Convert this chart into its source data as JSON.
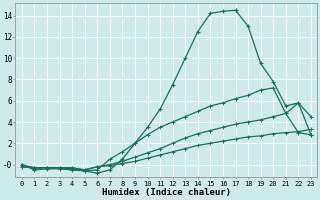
{
  "xlabel": "Humidex (Indice chaleur)",
  "bg_color": "#ceeaea",
  "grid_color": "#b0d8d8",
  "line_color": "#1a7060",
  "xlim": [
    -0.5,
    23.5
  ],
  "ylim": [
    -1.2,
    15.2
  ],
  "yticks": [
    0,
    2,
    4,
    6,
    8,
    10,
    12,
    14
  ],
  "xticks": [
    0,
    1,
    2,
    3,
    4,
    5,
    6,
    7,
    8,
    9,
    10,
    11,
    12,
    13,
    14,
    15,
    16,
    17,
    18,
    19,
    20,
    21,
    22,
    23
  ],
  "line1_x": [
    0,
    1,
    2,
    3,
    4,
    5,
    6,
    7,
    8,
    9,
    10,
    11,
    12,
    13,
    14,
    15,
    16,
    17
  ],
  "line1_y": [
    0,
    -0.5,
    -0.4,
    -0.4,
    -0.5,
    -0.6,
    -0.8,
    -0.5,
    0.5,
    2.0,
    3.5,
    5.2,
    7.5,
    10.0,
    12.5,
    14.2,
    14.4,
    14.5
  ],
  "line1b_x": [
    17,
    18,
    19,
    20,
    21,
    22,
    23
  ],
  "line1b_y": [
    14.5,
    13.0,
    9.5,
    7.8,
    5.5,
    5.8,
    2.8
  ],
  "line2_x": [
    0,
    1,
    2,
    3,
    4,
    5,
    6,
    7,
    8,
    9,
    10,
    11,
    12,
    13,
    14,
    15,
    16,
    17,
    18,
    19,
    20,
    21,
    22,
    23
  ],
  "line2_y": [
    0,
    -0.3,
    -0.3,
    -0.3,
    -0.4,
    -0.6,
    -0.5,
    0.5,
    1.2,
    2.0,
    2.8,
    3.5,
    4.0,
    4.5,
    5.0,
    5.5,
    5.8,
    6.2,
    6.5,
    7.0,
    7.2,
    4.8,
    5.8,
    4.5
  ],
  "line3_x": [
    0,
    1,
    2,
    3,
    4,
    5,
    6,
    7,
    8,
    9,
    10,
    11,
    12,
    13,
    14,
    15,
    16,
    17,
    18,
    19,
    20,
    21,
    22,
    23
  ],
  "line3_y": [
    -0.2,
    -0.3,
    -0.3,
    -0.3,
    -0.3,
    -0.5,
    -0.2,
    0.0,
    0.3,
    0.7,
    1.1,
    1.5,
    2.0,
    2.5,
    2.9,
    3.2,
    3.5,
    3.8,
    4.0,
    4.2,
    4.5,
    4.8,
    3.0,
    2.8
  ],
  "line4_x": [
    0,
    1,
    2,
    3,
    4,
    5,
    6,
    7,
    8,
    9,
    10,
    11,
    12,
    13,
    14,
    15,
    16,
    17,
    18,
    19,
    20,
    21,
    22,
    23
  ],
  "line4_y": [
    -0.2,
    -0.3,
    -0.3,
    -0.3,
    -0.3,
    -0.5,
    -0.2,
    -0.1,
    0.1,
    0.3,
    0.6,
    0.9,
    1.2,
    1.5,
    1.8,
    2.0,
    2.2,
    2.4,
    2.6,
    2.7,
    2.9,
    3.0,
    3.1,
    3.3
  ]
}
